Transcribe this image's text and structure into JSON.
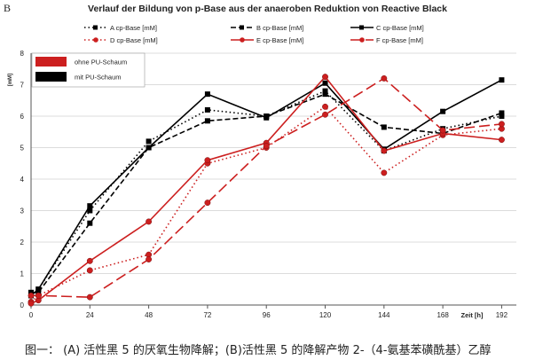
{
  "panel_label": "B",
  "caption": "图一： (A) 活性黑 5 的厌氧生物降解；(B)活性黑 5 的降解产物 2-（4-氨基苯磺酰基）乙醇",
  "chart_data": {
    "type": "line",
    "title": "Verlauf der Bildung von p-Base aus der anaeroben Reduktion von Reactive Black",
    "xlabel": "Zeit [h]",
    "ylabel": "[mM]",
    "xlim": [
      0,
      198
    ],
    "ylim": [
      0,
      8
    ],
    "xticks": [
      0,
      24,
      48,
      72,
      96,
      120,
      144,
      168,
      192
    ],
    "yticks": [
      0,
      1,
      2,
      3,
      4,
      5,
      6,
      7,
      8
    ],
    "grid": "horizontal",
    "group_legend": [
      {
        "label": "ohne PU-Schaum",
        "color": "#cc1f1f"
      },
      {
        "label": "mit PU-Schaum",
        "color": "#000000"
      }
    ],
    "series": [
      {
        "name": "A cp-Base [mM]",
        "color": "#000000",
        "dash": "dotted",
        "marker": "square",
        "x": [
          0,
          3,
          24,
          48,
          72,
          96,
          120,
          144,
          168,
          192
        ],
        "y": [
          0.3,
          0.5,
          3.0,
          5.2,
          6.2,
          6.0,
          6.8,
          4.9,
          5.6,
          6.0
        ]
      },
      {
        "name": "B cp-Base [mM]",
        "color": "#000000",
        "dash": "dashed",
        "marker": "square",
        "x": [
          0,
          3,
          24,
          48,
          72,
          96,
          120,
          144,
          168,
          192
        ],
        "y": [
          0.4,
          0.4,
          2.6,
          5.0,
          5.85,
          6.0,
          6.7,
          5.65,
          5.45,
          6.1
        ]
      },
      {
        "name": "C cp-Base [mM]",
        "color": "#000000",
        "dash": "solid",
        "marker": "square",
        "x": [
          0,
          3,
          24,
          48,
          72,
          96,
          120,
          144,
          168,
          192
        ],
        "y": [
          0.3,
          0.5,
          3.15,
          5.0,
          6.7,
          5.95,
          7.05,
          4.95,
          6.15,
          7.15
        ]
      },
      {
        "name": "D cp-Base [mM]",
        "color": "#cc1f1f",
        "dash": "dotted",
        "marker": "circle",
        "x": [
          0,
          3,
          24,
          48,
          72,
          96,
          120,
          144,
          168,
          192
        ],
        "y": [
          0.1,
          0.3,
          1.1,
          1.6,
          4.5,
          5.0,
          6.3,
          4.2,
          5.4,
          5.6
        ]
      },
      {
        "name": "E cp-Base [mM]",
        "color": "#cc1f1f",
        "dash": "solid",
        "marker": "circle",
        "x": [
          0,
          3,
          24,
          48,
          72,
          96,
          120,
          144,
          168,
          192
        ],
        "y": [
          0.05,
          0.15,
          1.4,
          2.65,
          4.6,
          5.15,
          7.25,
          4.9,
          5.45,
          5.25
        ]
      },
      {
        "name": "F cp-Base [mM]",
        "color": "#cc1f1f",
        "dash": "longdash",
        "marker": "circle",
        "x": [
          0,
          3,
          24,
          48,
          72,
          96,
          120,
          144,
          168,
          192
        ],
        "y": [
          0.3,
          0.3,
          0.25,
          1.45,
          3.25,
          5.05,
          6.05,
          7.2,
          5.55,
          5.75
        ]
      }
    ]
  }
}
